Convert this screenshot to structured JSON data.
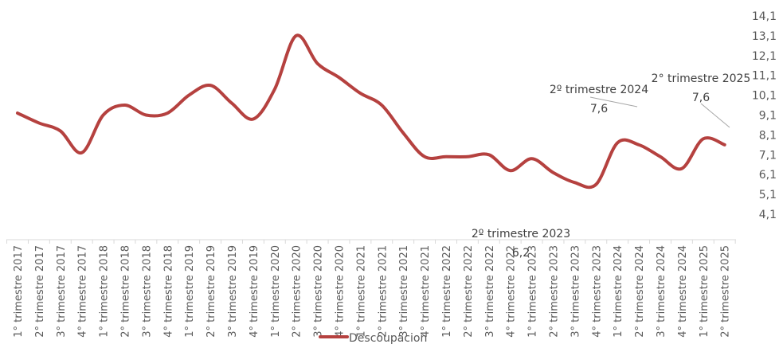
{
  "chart_data": {
    "type": "line",
    "categories": [
      "1° trimestre 2017",
      "2° trimestre 2017",
      "3° trimestre 2017",
      "4° trimestre 2017",
      "1° trimestre 2018",
      "2° trimestre 2018",
      "3° trimestre 2018",
      "4° trimestre 2018",
      "1° trimestre 2019",
      "2° trimestre 2019",
      "3° trimestre 2019",
      "4° trimestre 2019",
      "1° trimestre 2020",
      "2° trimestre 2020",
      "3° trimestre 2020",
      "4° trimestre 2020",
      "1° trimestre 2021",
      "2° trimestre 2021",
      "3° trimestre 2021",
      "4° trimestre 2021",
      "1° trimestre 2022",
      "2° trimestre 2022",
      "3° trimestre 2022",
      "4° trimestre 2022",
      "1° trimestre 2023",
      "2° trimestre 2023",
      "3° trimestre 2023",
      "4° trimestre 2023",
      "1° trimestre 2024",
      "2° trimestre 2024",
      "3° trimestre 2024",
      "4° trimestre 2024",
      "1° trimestre 2025",
      "2° trimestre 2025"
    ],
    "series": [
      {
        "name": "Descoupacion",
        "color": "#b5413f",
        "values": [
          9.2,
          8.7,
          8.3,
          7.2,
          9.1,
          9.6,
          9.1,
          9.2,
          10.1,
          10.6,
          9.7,
          8.9,
          10.4,
          13.1,
          11.7,
          11.0,
          10.2,
          9.6,
          8.2,
          7.0,
          7.0,
          7.0,
          7.1,
          6.3,
          6.9,
          6.2,
          5.7,
          5.6,
          7.7,
          7.6,
          7.0,
          6.4,
          7.9,
          7.6
        ]
      }
    ],
    "y_ticks": [
      "4,1",
      "5,1",
      "6,1",
      "7,1",
      "8,1",
      "9,1",
      "10,1",
      "11,1",
      "12,1",
      "13,1",
      "14,1"
    ],
    "ylim": [
      4.1,
      14.1
    ],
    "y_axis_position": "right",
    "grid": false,
    "legend": {
      "position": "bottom",
      "label": "Descoupacion"
    },
    "annotations": [
      {
        "label": "2º trimestre 2023",
        "value": "6,2",
        "category_index": 25
      },
      {
        "label": "2º trimestre 2024",
        "value": "7,6",
        "category_index": 29
      },
      {
        "label": "2° trimestre 2025",
        "value": "7,6",
        "category_index": 33
      }
    ]
  }
}
